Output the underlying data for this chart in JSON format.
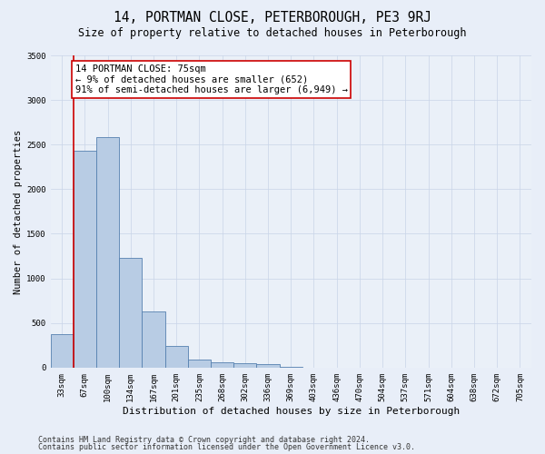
{
  "title": "14, PORTMAN CLOSE, PETERBOROUGH, PE3 9RJ",
  "subtitle": "Size of property relative to detached houses in Peterborough",
  "xlabel": "Distribution of detached houses by size in Peterborough",
  "ylabel": "Number of detached properties",
  "categories": [
    "33sqm",
    "67sqm",
    "100sqm",
    "134sqm",
    "167sqm",
    "201sqm",
    "235sqm",
    "268sqm",
    "302sqm",
    "336sqm",
    "369sqm",
    "403sqm",
    "436sqm",
    "470sqm",
    "504sqm",
    "537sqm",
    "571sqm",
    "604sqm",
    "638sqm",
    "672sqm",
    "705sqm"
  ],
  "values": [
    380,
    2430,
    2580,
    1230,
    630,
    240,
    90,
    60,
    50,
    40,
    5,
    3,
    2,
    1,
    0,
    0,
    0,
    0,
    0,
    0,
    0
  ],
  "bar_color": "#b8cce4",
  "bar_edge_color": "#5580b0",
  "vline_x": 0.5,
  "vline_color": "#cc0000",
  "annotation_text": "14 PORTMAN CLOSE: 75sqm\n← 9% of detached houses are smaller (652)\n91% of semi-detached houses are larger (6,949) →",
  "annotation_box_edge_color": "#cc0000",
  "annotation_box_face_color": "#ffffff",
  "ylim": [
    0,
    3500
  ],
  "yticks": [
    0,
    500,
    1000,
    1500,
    2000,
    2500,
    3000,
    3500
  ],
  "footer_line1": "Contains HM Land Registry data © Crown copyright and database right 2024.",
  "footer_line2": "Contains public sector information licensed under the Open Government Licence v3.0.",
  "bg_color": "#e8eef8",
  "plot_bg_color": "#eaf0f8",
  "title_fontsize": 10.5,
  "subtitle_fontsize": 8.5,
  "xlabel_fontsize": 8,
  "ylabel_fontsize": 7.5,
  "tick_fontsize": 6.5,
  "annotation_fontsize": 7.5,
  "footer_fontsize": 6
}
